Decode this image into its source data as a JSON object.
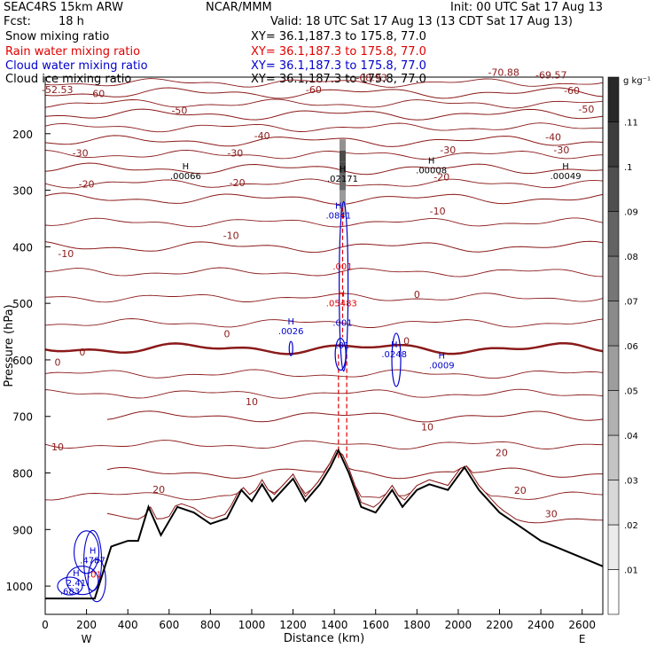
{
  "header": {
    "model": "SEAC4RS 15km ARW",
    "center": "NCAR/MMM",
    "init": "Init: 00 UTC Sat 17 Aug 13",
    "fcst_label": "Fcst:",
    "fcst_value": "18 h",
    "valid": "Valid: 18 UTC Sat 17 Aug 13 (13 CDT Sat 17 Aug 13)"
  },
  "fields": [
    {
      "label": "Snow mixing ratio",
      "xy": "XY=  36.1,187.3 to 175.8, 77.0",
      "color": "#000000"
    },
    {
      "label": "Rain water mixing ratio",
      "xy": "XY=  36.1,187.3 to 175.8, 77.0",
      "color": "#e00000"
    },
    {
      "label": "Cloud water mixing ratio",
      "xy": "XY=  36.1,187.3 to 175.8, 77.0",
      "color": "#0000cc"
    },
    {
      "label": "Cloud ice mixing ratio",
      "xy": "XY=  36.1,187.3 to 175.8, 77.0",
      "color": "#000000"
    }
  ],
  "chart_data": {
    "type": "contour cross-section",
    "xlabel": "Distance (km)",
    "ylabel": "Pressure (hPa)",
    "xlim": [
      0,
      2700
    ],
    "ylim": [
      1050,
      100
    ],
    "x_ticks": [
      0,
      200,
      400,
      600,
      800,
      1000,
      1200,
      1400,
      1600,
      1800,
      2000,
      2200,
      2400,
      2600
    ],
    "y_ticks": [
      200,
      300,
      400,
      500,
      600,
      700,
      800,
      900,
      1000
    ],
    "x_end_labels": {
      "left": "W",
      "right": "E"
    },
    "colorbar": {
      "unit": "g kg⁻¹",
      "ticks": [
        ".01",
        ".02",
        ".03",
        ".04",
        ".05",
        ".06",
        ".07",
        ".08",
        ".09",
        ".1",
        ".11"
      ]
    },
    "isotherm_labels": [
      "-70.88",
      "-69.57",
      "-68.93",
      "-60",
      "-50",
      "-40",
      "-30",
      "-20",
      "-10",
      "0",
      "10",
      "20",
      "30",
      "-52.53"
    ],
    "isotherm_levels": [
      {
        "level": -60,
        "pressure": 128
      },
      {
        "level": -50,
        "pressure": 166
      },
      {
        "level": -40,
        "pressure": 213
      },
      {
        "level": -30,
        "pressure": 262
      },
      {
        "level": -20,
        "pressure": 315
      },
      {
        "level": -10,
        "pressure": 400
      },
      {
        "level": 0,
        "pressure": 580
      },
      {
        "level": 10,
        "pressure": 700
      },
      {
        "level": 20,
        "pressure": 800
      },
      {
        "level": 30,
        "pressure": 880
      }
    ],
    "terrain": [
      {
        "x": 0,
        "p": 1022
      },
      {
        "x": 240,
        "p": 1022
      },
      {
        "x": 320,
        "p": 930
      },
      {
        "x": 400,
        "p": 920
      },
      {
        "x": 450,
        "p": 920
      },
      {
        "x": 500,
        "p": 860
      },
      {
        "x": 560,
        "p": 910
      },
      {
        "x": 640,
        "p": 860
      },
      {
        "x": 720,
        "p": 870
      },
      {
        "x": 800,
        "p": 890
      },
      {
        "x": 880,
        "p": 880
      },
      {
        "x": 950,
        "p": 830
      },
      {
        "x": 1000,
        "p": 850
      },
      {
        "x": 1050,
        "p": 820
      },
      {
        "x": 1100,
        "p": 850
      },
      {
        "x": 1150,
        "p": 830
      },
      {
        "x": 1200,
        "p": 810
      },
      {
        "x": 1260,
        "p": 850
      },
      {
        "x": 1330,
        "p": 820
      },
      {
        "x": 1380,
        "p": 790
      },
      {
        "x": 1420,
        "p": 760
      },
      {
        "x": 1470,
        "p": 800
      },
      {
        "x": 1530,
        "p": 860
      },
      {
        "x": 1600,
        "p": 870
      },
      {
        "x": 1680,
        "p": 830
      },
      {
        "x": 1730,
        "p": 860
      },
      {
        "x": 1800,
        "p": 830
      },
      {
        "x": 1860,
        "p": 820
      },
      {
        "x": 1950,
        "p": 830
      },
      {
        "x": 2030,
        "p": 790
      },
      {
        "x": 2100,
        "p": 830
      },
      {
        "x": 2200,
        "p": 870
      },
      {
        "x": 2300,
        "p": 895
      },
      {
        "x": 2400,
        "p": 920
      },
      {
        "x": 2500,
        "p": 935
      },
      {
        "x": 2600,
        "p": 950
      },
      {
        "x": 2700,
        "p": 965
      }
    ],
    "max_labels": [
      {
        "label": "H",
        "value": ".00066"
      },
      {
        "label": "H",
        "value": ".02171"
      },
      {
        "label": "H",
        "value": ".00008"
      },
      {
        "label": "H",
        "value": ".00049"
      },
      {
        "label": "H",
        "value": ".0841"
      },
      {
        "label": "H",
        "value": ".05483"
      },
      {
        "label": "H",
        "value": ".0026"
      },
      {
        "label": "H",
        "value": ".0248"
      },
      {
        "label": "H",
        "value": ".0009"
      },
      {
        "label": "H",
        "value": ".4787"
      },
      {
        "label": "H",
        "value": "2.41"
      }
    ],
    "line_labels": [
      ".001",
      ".683",
      ".001",
      ".01",
      ".01"
    ]
  }
}
